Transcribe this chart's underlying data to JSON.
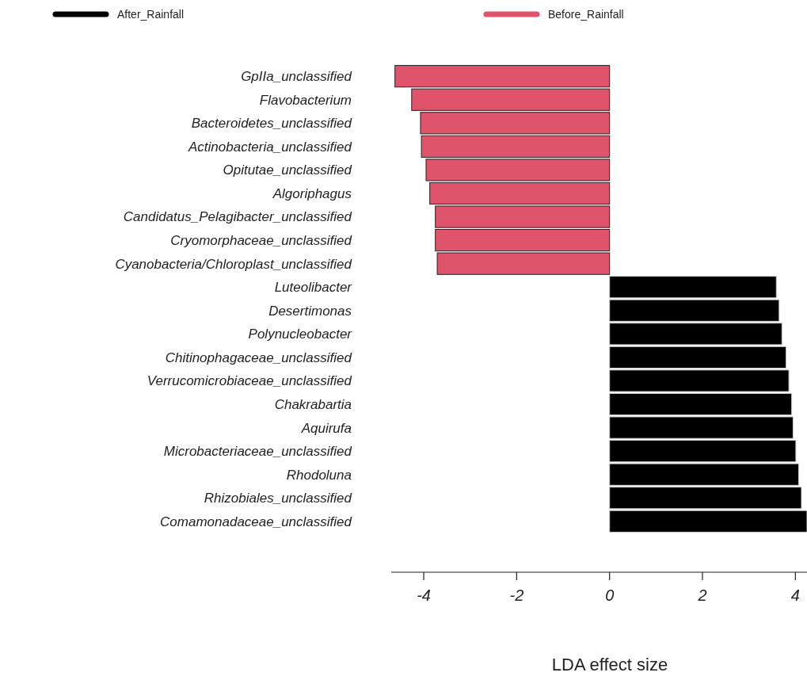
{
  "chart_data": {
    "type": "bar",
    "orientation": "horizontal",
    "xlabel": "LDA effect size",
    "categories": [
      "GpIIa_unclassified",
      "Flavobacterium",
      "Bacteroidetes_unclassified",
      "Actinobacteria_unclassified",
      "Opitutae_unclassified",
      "Algoriphagus",
      "Candidatus_Pelagibacter_unclassified",
      "Cryomorphaceae_unclassified",
      "Cyanobacteria/Chloroplast_unclassified",
      "Luteolibacter",
      "Desertimonas",
      "Polynucleobacter",
      "Chitinophagaceae_unclassified",
      "Verrucomicrobiaceae_unclassified",
      "Chakrabartia",
      "Aquirufa",
      "Microbacteriaceae_unclassified",
      "Rhodoluna",
      "Rhizobiales_unclassified",
      "Comamonadaceae_unclassified"
    ],
    "series": [
      {
        "name": "After_Rainfall",
        "color": "#000000",
        "values": [
          null,
          null,
          null,
          null,
          null,
          null,
          null,
          null,
          null,
          3.59,
          3.65,
          3.71,
          3.8,
          3.86,
          3.92,
          3.95,
          4.01,
          4.07,
          4.13,
          4.25
        ]
      },
      {
        "name": "Before_Rainfall",
        "color": "#df536b",
        "values": [
          -4.62,
          -4.26,
          -4.07,
          -4.05,
          -3.95,
          -3.87,
          -3.75,
          -3.75,
          -3.71,
          null,
          null,
          null,
          null,
          null,
          null,
          null,
          null,
          null,
          null,
          null
        ]
      }
    ],
    "xlim": [
      -4.7,
      4.25
    ],
    "xticks": [
      -4,
      -2,
      0,
      2,
      4
    ],
    "grid": false,
    "legend": "top"
  }
}
